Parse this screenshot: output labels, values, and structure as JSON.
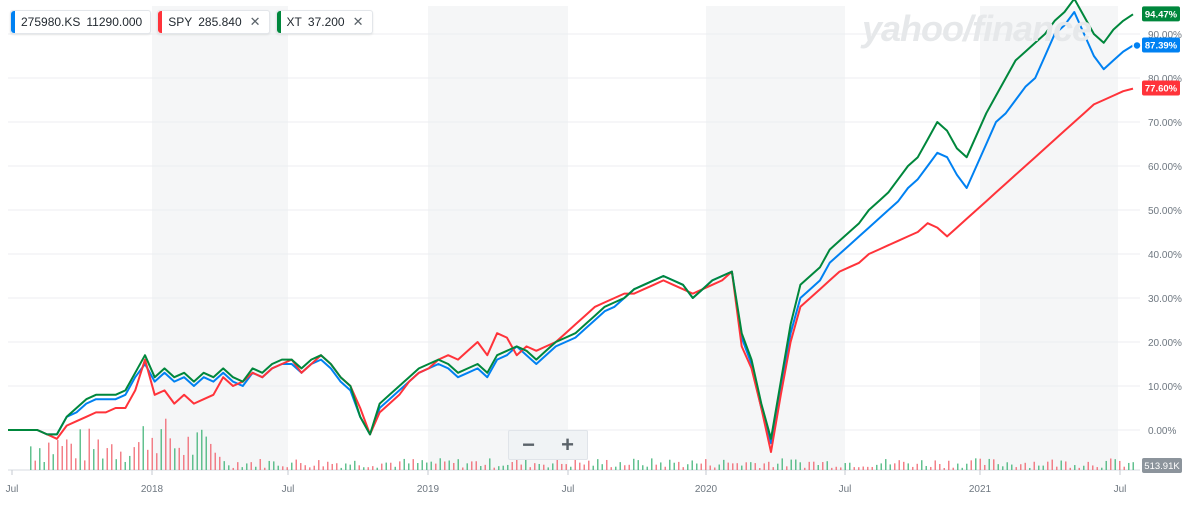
{
  "brand": {
    "watermark": "yahoo/finance"
  },
  "legend": [
    {
      "symbol": "275980.KS",
      "price": "11290.000",
      "color": "#0081f2",
      "close_icon": "close-icon"
    },
    {
      "symbol": "SPY",
      "price": "285.840",
      "color": "#ff333a",
      "close_icon": "close-icon"
    },
    {
      "symbol": "XT",
      "price": "37.200",
      "color": "#00873c",
      "close_icon": "close-icon"
    }
  ],
  "zoom": {
    "minus": "−",
    "plus": "+"
  },
  "chart_data": {
    "type": "line",
    "x_tick_labels": [
      "Jul",
      "2018",
      "Jul",
      "2019",
      "Jul",
      "2020",
      "Jul",
      "2021",
      "Jul"
    ],
    "y_tick_labels": [
      "0.00%",
      "10.00%",
      "20.00%",
      "30.00%",
      "40.00%",
      "50.00%",
      "60.00%",
      "70.00%",
      "80.00%",
      "90.00%"
    ],
    "ylim": [
      -7.5,
      95
    ],
    "volume_label": "513.91K",
    "series": [
      {
        "name": "275980.KS",
        "color": "#0081f2",
        "end_label": "87.39%",
        "values": [
          0,
          0,
          0,
          0,
          -1,
          -1,
          3,
          4,
          6,
          7,
          7,
          7,
          8,
          12,
          15,
          11,
          13,
          11,
          12,
          10,
          12,
          11,
          13,
          11,
          10,
          13,
          12,
          14,
          15,
          15,
          13,
          15,
          16,
          14,
          11,
          9,
          3,
          -1,
          5,
          7,
          9,
          11,
          13,
          14,
          15,
          14,
          12,
          13,
          14,
          12,
          16,
          17,
          19,
          17,
          15,
          17,
          19,
          20,
          21,
          23,
          25,
          27,
          28,
          30,
          32,
          33,
          34,
          35,
          34,
          33,
          30,
          32,
          34,
          35,
          36,
          21,
          15,
          5,
          -3,
          10,
          22,
          30,
          32,
          34,
          38,
          40,
          42,
          44,
          46,
          48,
          50,
          52,
          55,
          57,
          60,
          63,
          62,
          58,
          55,
          60,
          65,
          70,
          72,
          75,
          78,
          80,
          85,
          90,
          92,
          95,
          90,
          85,
          82,
          84,
          86,
          87.39
        ]
      },
      {
        "name": "SPY",
        "color": "#ff333a",
        "end_label": "77.60%",
        "values": [
          0,
          0,
          0,
          0,
          -1,
          -2,
          1,
          2,
          3,
          4,
          4,
          5,
          5,
          9,
          16,
          8,
          9,
          6,
          8,
          6,
          7,
          8,
          12,
          10,
          11,
          13,
          12,
          14,
          15,
          16,
          13,
          15,
          17,
          15,
          12,
          10,
          5,
          -1,
          4,
          6,
          8,
          11,
          13,
          14,
          16,
          17,
          16,
          18,
          20,
          17,
          22,
          21,
          17,
          19,
          18,
          19,
          20,
          22,
          24,
          26,
          28,
          29,
          30,
          31,
          31,
          32,
          33,
          34,
          33,
          32,
          31,
          32,
          33,
          34,
          36,
          19,
          14,
          5,
          -5,
          8,
          20,
          28,
          30,
          32,
          34,
          36,
          37,
          38,
          40,
          41,
          42,
          43,
          44,
          45,
          47,
          46,
          44,
          46,
          48,
          50,
          52,
          54,
          56,
          58,
          60,
          62,
          64,
          66,
          68,
          70,
          72,
          74,
          75,
          76,
          77,
          77.6
        ]
      },
      {
        "name": "XT",
        "color": "#00873c",
        "end_label": "94.47%",
        "values": [
          0,
          0,
          0,
          0,
          -1,
          -1,
          3,
          5,
          7,
          8,
          8,
          8,
          9,
          13,
          17,
          12,
          14,
          12,
          13,
          11,
          13,
          12,
          14,
          12,
          11,
          14,
          13,
          15,
          16,
          16,
          14,
          16,
          17,
          15,
          12,
          10,
          3,
          -1,
          6,
          8,
          10,
          12,
          14,
          15,
          16,
          15,
          13,
          14,
          15,
          13,
          17,
          18,
          19,
          18,
          16,
          18,
          20,
          21,
          22,
          24,
          26,
          28,
          29,
          30,
          32,
          33,
          34,
          35,
          34,
          33,
          30,
          32,
          34,
          35,
          36,
          22,
          16,
          6,
          -2,
          11,
          24,
          33,
          35,
          37,
          41,
          43,
          45,
          47,
          50,
          52,
          54,
          57,
          60,
          62,
          66,
          70,
          68,
          64,
          62,
          67,
          72,
          76,
          80,
          84,
          86,
          88,
          90,
          93,
          95,
          98,
          94,
          90,
          88,
          91,
          93,
          94.47
        ]
      }
    ]
  }
}
